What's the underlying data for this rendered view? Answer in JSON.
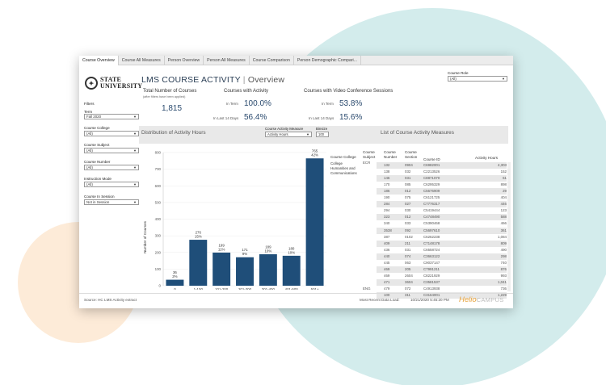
{
  "tabs": [
    "Course Overview",
    "Course All Measures",
    "Person Overview",
    "Person All Measures",
    "Course Comparison",
    "Person Demographic Compari..."
  ],
  "logo": {
    "line1": "STATE",
    "line2": "UNIVERSITY"
  },
  "title": {
    "main": "LMS COURSE ACTIVITY",
    "separator": "|",
    "sub": "Overview"
  },
  "course_role": {
    "label": "Course Role",
    "value": "(All)"
  },
  "filters": {
    "heading": "Filters",
    "term": {
      "label": "Term",
      "value": "Fall 2020"
    },
    "college": {
      "label": "Course College",
      "value": "(All)"
    },
    "subject": {
      "label": "Course Subject",
      "value": "(All)"
    },
    "number": {
      "label": "Course Number",
      "value": "(All)"
    },
    "mode": {
      "label": "Instruction Mode",
      "value": "(All)"
    },
    "session": {
      "label": "Course In Session",
      "value": "Not in Session"
    }
  },
  "kpi": {
    "total_title": "Total Number of Courses",
    "total_sub": "(after filters have been applied)",
    "total_value": "1,815",
    "activity_title": "Courses with Activity",
    "video_title": "Courses with Video Conference Sessions",
    "in_term_label": "In Term",
    "last14_label": "In Last 14 Days",
    "activity_in_term": "100.0%",
    "activity_last14": "56.4%",
    "video_in_term": "53.8%",
    "video_last14": "15.6%"
  },
  "distribution": {
    "title_prefix": "Distribution of",
    "title_em": "Activity Hours",
    "measure_label": "Course Activity Measure",
    "measure_value": "Activity Hours",
    "binsize_label": "Binsize",
    "binsize_value": "100"
  },
  "chart_data": {
    "type": "bar",
    "categories": [
      "0",
      "1-100",
      "101-200",
      "201-300",
      "301-400",
      "401-500",
      "501+"
    ],
    "values": [
      36,
      276,
      199,
      171,
      189,
      180,
      765
    ],
    "pct_labels": [
      "2%",
      "15%",
      "11%",
      "9%",
      "10%",
      "10%",
      "42%"
    ],
    "ylabel": "Number of Courses",
    "ylim": [
      0,
      800
    ],
    "yticks": [
      0,
      100,
      200,
      300,
      400,
      500,
      600,
      700,
      800
    ],
    "color": "#1f4e79"
  },
  "list": {
    "title": "List of Course Activity Measures",
    "headers": {
      "college": "Course College",
      "subject": "Course Subject",
      "number": "Course Number",
      "section": "Course Section",
      "id": "Course ID",
      "hours": "Activity Hours"
    },
    "college_value": "College Humanities and Communications",
    "subject_values": {
      "top": "ECR",
      "bottom": "ENG"
    },
    "rows": [
      [
        "132",
        "0904",
        "C6982001",
        "4,303"
      ],
      [
        "138",
        "032",
        "C2213526",
        "152"
      ],
      [
        "146",
        "031",
        "C8871070",
        "61"
      ],
      [
        "170",
        "085",
        "C6295329",
        "898"
      ],
      [
        "186",
        "012",
        "C5676909",
        "29"
      ],
      [
        "190",
        "075",
        "C6121725",
        "404"
      ],
      [
        "284",
        "027",
        "C7776317",
        "446"
      ],
      [
        "294",
        "030",
        "C5419444",
        "123"
      ],
      [
        "323",
        "012",
        "C4748490",
        "588"
      ],
      [
        "340",
        "033",
        "C5390468",
        "466"
      ],
      [
        "3538",
        "092",
        "C5697610",
        "361"
      ],
      [
        "387",
        "0102",
        "C6262238",
        "1,084"
      ],
      [
        "409",
        "211",
        "C7148178",
        "809"
      ],
      [
        "436",
        "031",
        "C6558724",
        "490"
      ],
      [
        "440",
        "074",
        "C3663122",
        "298"
      ],
      [
        "445",
        "063",
        "C9037147",
        "740"
      ],
      [
        "469",
        "205",
        "C7991211",
        "876"
      ],
      [
        "469",
        "2604",
        "C8221929",
        "993"
      ],
      [
        "471",
        "3604",
        "C3581537",
        "1,041"
      ],
      [
        "479",
        "072",
        "C4913938",
        "736"
      ],
      [
        "100",
        "311",
        "C3164001",
        "1,229"
      ]
    ]
  },
  "footer": {
    "source": "Source: HC LMS Activity extract",
    "load_label": "Most Recent Data Load:",
    "load_value": "10/21/2020 5:45:20 PM",
    "brand_a": "Helio",
    "brand_b": "CAMPUS"
  }
}
